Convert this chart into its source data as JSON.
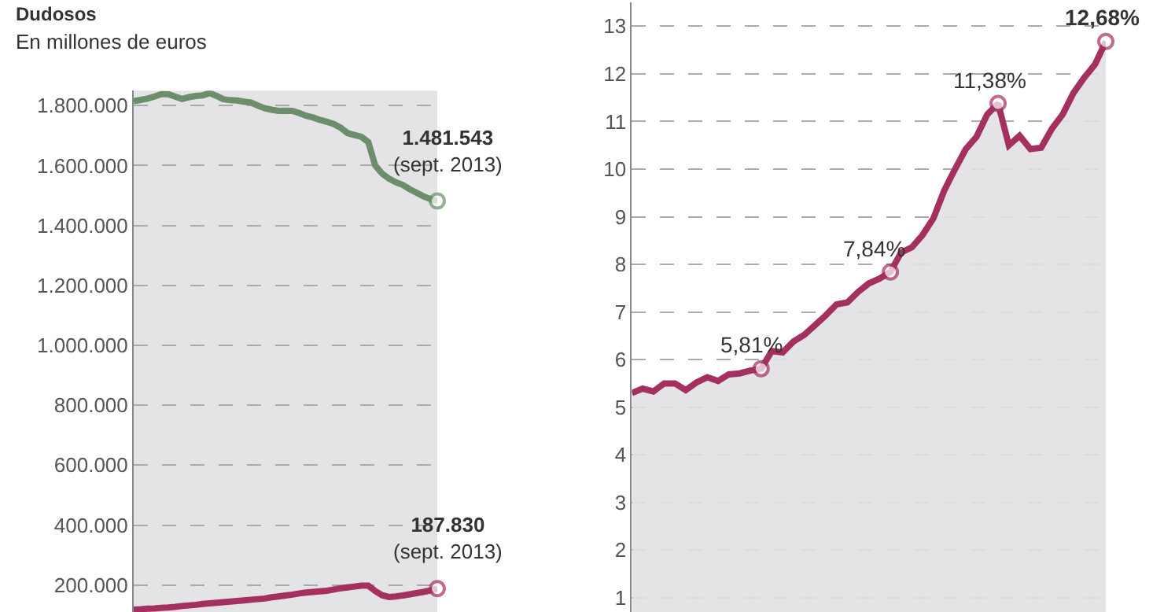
{
  "chart_data": [
    {
      "type": "line",
      "title": "Dudosos",
      "subtitle": "En millones de euros",
      "categories": [
        null,
        null,
        null,
        null,
        null,
        null,
        null,
        null,
        null,
        null,
        null,
        null,
        null,
        null,
        null,
        null,
        null,
        null,
        null,
        null,
        null,
        null,
        null,
        null,
        null,
        null,
        null,
        null,
        null,
        null,
        null,
        null,
        null,
        null,
        null,
        null,
        null,
        null,
        null,
        null,
        null,
        null,
        null,
        null,
        null
      ],
      "ylim": [
        110000,
        1850000
      ],
      "yticks": [
        {
          "value": 200000,
          "label": "200.000"
        },
        {
          "value": 400000,
          "label": "400.000"
        },
        {
          "value": 600000,
          "label": "600.000"
        },
        {
          "value": 800000,
          "label": "800.000"
        },
        {
          "value": 1000000,
          "label": "1.000.000"
        },
        {
          "value": 1200000,
          "label": "1.200.000"
        },
        {
          "value": 1400000,
          "label": "1.400.000"
        },
        {
          "value": 1600000,
          "label": "1.600.000"
        },
        {
          "value": 1800000,
          "label": "1.800.000"
        }
      ],
      "grid": "y",
      "tick_labels": "y",
      "line_style": "solid",
      "series": [
        {
          "color": "#6b8e6b",
          "values": [
            1815000,
            1819000,
            1823000,
            1830000,
            1838000,
            1838000,
            1830000,
            1822000,
            1828000,
            1832000,
            1834000,
            1842000,
            1832000,
            1821000,
            1818000,
            1817000,
            1813000,
            1810000,
            1800000,
            1791000,
            1786000,
            1782000,
            1783000,
            1782000,
            1775000,
            1766000,
            1760000,
            1752000,
            1746000,
            1738000,
            1726000,
            1708000,
            1702000,
            1696000,
            1678000,
            1600000,
            1573000,
            1556000,
            1544000,
            1535000,
            1521000,
            1509000,
            1497000,
            1488000,
            1481543
          ]
        },
        {
          "color": "#a3305f",
          "values": [
            118000,
            119000,
            121000,
            122000,
            124000,
            125000,
            127000,
            130000,
            132000,
            134000,
            137000,
            139000,
            141000,
            143000,
            145000,
            147000,
            149000,
            151000,
            153000,
            155000,
            159000,
            162000,
            165000,
            168000,
            172000,
            175000,
            177000,
            179000,
            181000,
            185000,
            189000,
            192000,
            195000,
            198000,
            198000,
            180000,
            166000,
            160000,
            162000,
            165000,
            169000,
            173000,
            177000,
            182000,
            187830
          ]
        }
      ],
      "annotations": [
        {
          "text": "1.481.543\n(sept. 2013)",
          "y": 1481543
        },
        {
          "text": "187.830\n(sept. 2013)",
          "y": 187830
        }
      ]
    },
    {
      "type": "area",
      "categories": [
        null,
        null,
        null,
        null,
        null,
        null,
        null,
        null,
        null,
        null,
        null,
        null,
        null,
        null,
        null,
        null,
        null,
        null,
        null,
        null,
        null,
        null,
        null,
        null,
        null,
        null,
        null,
        null,
        null,
        null,
        null,
        null,
        null,
        null,
        null,
        null,
        null,
        null,
        null,
        null,
        null,
        null,
        null,
        null,
        null
      ],
      "ylim": [
        0.7,
        13.5
      ],
      "yticks": [
        1,
        2,
        3,
        4,
        5,
        6,
        7,
        8,
        9,
        10,
        11,
        12,
        13
      ],
      "grid": "y",
      "tick_labels": "y",
      "line_style": "solid",
      "series": [
        {
          "color": "#a3305f",
          "values": [
            5.3,
            5.39,
            5.33,
            5.5,
            5.5,
            5.36,
            5.52,
            5.63,
            5.55,
            5.69,
            5.71,
            5.77,
            5.81,
            6.18,
            6.15,
            6.38,
            6.52,
            6.72,
            6.93,
            7.16,
            7.2,
            7.42,
            7.6,
            7.7,
            7.84,
            8.25,
            8.36,
            8.62,
            8.97,
            9.55,
            10.0,
            10.42,
            10.68,
            11.15,
            11.38,
            10.5,
            10.7,
            10.42,
            10.45,
            10.85,
            11.15,
            11.6,
            11.92,
            12.2,
            12.68
          ]
        }
      ],
      "annotations": [
        {
          "text": "5,81%",
          "y": 5.81
        },
        {
          "text": "7,84%",
          "y": 7.84
        },
        {
          "text": "11,38%",
          "y": 11.38
        },
        {
          "text": "12,68%",
          "y": 12.68
        }
      ]
    }
  ]
}
